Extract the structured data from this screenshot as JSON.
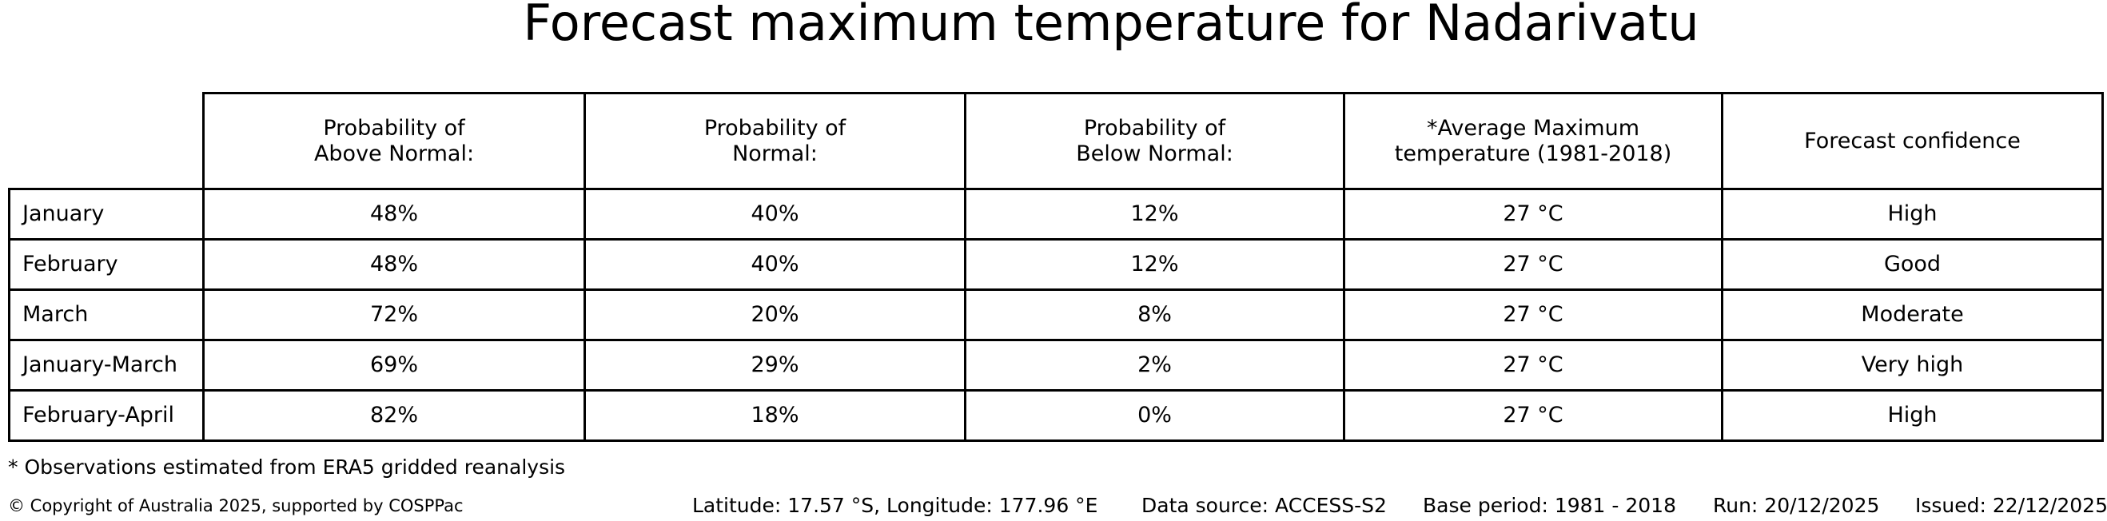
{
  "title": "Forecast maximum temperature for Nadarivatu",
  "chart_data": {
    "type": "table",
    "title": "Forecast maximum temperature for Nadarivatu",
    "columns": [
      "",
      "Probability of\nAbove Normal:",
      "Probability of\nNormal:",
      "Probability of\nBelow Normal:",
      "*Average Maximum\ntemperature (1981-2018)",
      "Forecast confidence"
    ],
    "rows": [
      [
        "January",
        "48%",
        "40%",
        "12%",
        "27 °C",
        "High"
      ],
      [
        "February",
        "48%",
        "40%",
        "12%",
        "27 °C",
        "Good"
      ],
      [
        "March",
        "72%",
        "20%",
        "8%",
        "27 °C",
        "Moderate"
      ],
      [
        "January-March",
        "69%",
        "29%",
        "2%",
        "27 °C",
        "Very high"
      ],
      [
        "February-April",
        "82%",
        "18%",
        "0%",
        "27 °C",
        "High"
      ]
    ]
  },
  "footnote": "* Observations estimated from ERA5 gridded reanalysis",
  "footer": {
    "copyright": "© Copyright of Australia 2025, supported by COSPPac",
    "location": "Latitude: 17.57 °S, Longitude: 177.96 °E",
    "data_source": "Data source: ACCESS-S2",
    "base_period": "Base period: 1981 - 2018",
    "run": "Run: 20/12/2025",
    "issued": "Issued: 22/12/2025"
  }
}
